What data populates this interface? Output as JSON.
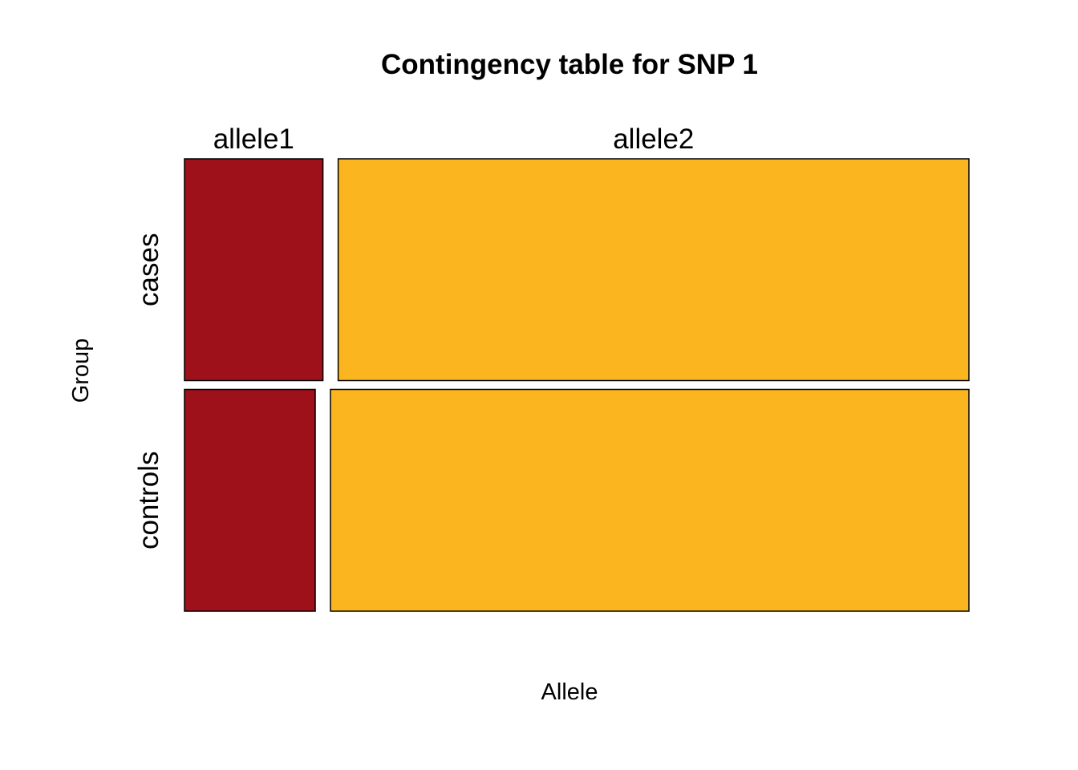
{
  "chart_data": {
    "type": "mosaic",
    "title": "Contingency table for SNP 1",
    "xlabel": "Allele",
    "ylabel": "Group",
    "columns": [
      "allele1",
      "allele2"
    ],
    "rows": [
      "cases",
      "controls"
    ],
    "row_proportions": [
      0.5,
      0.5
    ],
    "cells": [
      {
        "row": "cases",
        "column": "allele1",
        "proportion": 0.18
      },
      {
        "row": "cases",
        "column": "allele2",
        "proportion": 0.82
      },
      {
        "row": "controls",
        "column": "allele1",
        "proportion": 0.17
      },
      {
        "row": "controls",
        "column": "allele2",
        "proportion": 0.83
      }
    ],
    "colors": {
      "allele1": "#9E111A",
      "allele2": "#FBB61F"
    }
  }
}
